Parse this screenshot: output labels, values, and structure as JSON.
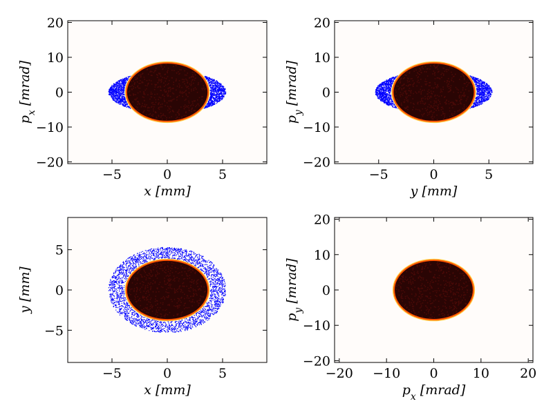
{
  "figure": {
    "background_color": "#ffffff",
    "panel_background_color": "#fffcfa"
  },
  "chart_data": [
    {
      "type": "scatter",
      "xlabel": "x [mm]",
      "ylabel": "p_x [mrad]",
      "xlim": [
        -9,
        9
      ],
      "ylim": [
        -20.5,
        20.5
      ],
      "xticks": [
        -5,
        0,
        5
      ],
      "xtick_labels": [
        "−5",
        "0",
        "5"
      ],
      "yticks": [
        -20,
        -10,
        0,
        10,
        20
      ],
      "ytick_labels": [
        "−20",
        "−10",
        "0",
        "10",
        "20"
      ],
      "grid": false,
      "series": [
        {
          "role": "halo",
          "shape": "crescent-pair",
          "color": "#0000ff",
          "outer_ellipse": {
            "cx": 0,
            "cy": 0,
            "rx": 5.3,
            "ry": 6.0
          },
          "inner_ellipse": {
            "cx": 0,
            "cy": 0,
            "rx": 3.9,
            "ry": 8.5
          }
        },
        {
          "role": "core",
          "shape": "ellipse-density",
          "fill_color": "#2a0504",
          "edge_color": "#ff5500",
          "ellipse": {
            "cx": 0,
            "cy": 0,
            "rx": 3.7,
            "ry": 8.4
          }
        }
      ]
    },
    {
      "type": "scatter",
      "xlabel": "y [mm]",
      "ylabel": "p_y [mrad]",
      "xlim": [
        -9,
        9
      ],
      "ylim": [
        -20.5,
        20.5
      ],
      "xticks": [
        -5,
        0,
        5
      ],
      "xtick_labels": [
        "−5",
        "0",
        "5"
      ],
      "yticks": [
        -20,
        -10,
        0,
        10,
        20
      ],
      "ytick_labels": [
        "−20",
        "−10",
        "0",
        "10",
        "20"
      ],
      "grid": false,
      "series": [
        {
          "role": "halo",
          "shape": "crescent-pair",
          "color": "#0000ff",
          "outer_ellipse": {
            "cx": 0,
            "cy": 0,
            "rx": 5.3,
            "ry": 6.0
          },
          "inner_ellipse": {
            "cx": 0,
            "cy": 0,
            "rx": 3.9,
            "ry": 8.5
          }
        },
        {
          "role": "core",
          "shape": "ellipse-density",
          "fill_color": "#2a0504",
          "edge_color": "#ff5500",
          "ellipse": {
            "cx": 0,
            "cy": 0,
            "rx": 3.7,
            "ry": 8.4
          }
        }
      ]
    },
    {
      "type": "scatter",
      "xlabel": "x [mm]",
      "ylabel": "y [mm]",
      "xlim": [
        -9,
        9
      ],
      "ylim": [
        -9,
        9
      ],
      "xticks": [
        -5,
        0,
        5
      ],
      "xtick_labels": [
        "−5",
        "0",
        "5"
      ],
      "yticks": [
        -5,
        0,
        5
      ],
      "ytick_labels": [
        "−5",
        "0",
        "5"
      ],
      "grid": false,
      "series": [
        {
          "role": "halo",
          "shape": "ring",
          "color": "#0000ff",
          "outer_ellipse": {
            "cx": 0,
            "cy": 0,
            "rx": 5.3,
            "ry": 5.3
          },
          "inner_ellipse": {
            "cx": 0,
            "cy": 0,
            "rx": 3.9,
            "ry": 3.9
          }
        },
        {
          "role": "core",
          "shape": "ellipse-density",
          "fill_color": "#2a0504",
          "edge_color": "#ff5500",
          "ellipse": {
            "cx": 0,
            "cy": 0,
            "rx": 3.7,
            "ry": 3.7
          }
        }
      ]
    },
    {
      "type": "scatter",
      "xlabel": "p_x [mrad]",
      "ylabel": "p_y [mrad]",
      "xlim": [
        -21,
        21
      ],
      "ylim": [
        -20.5,
        20.5
      ],
      "xticks": [
        -20,
        -10,
        0,
        10,
        20
      ],
      "xtick_labels": [
        "−20",
        "−10",
        "0",
        "10",
        "20"
      ],
      "yticks": [
        -20,
        -10,
        0,
        10,
        20
      ],
      "ytick_labels": [
        "−20",
        "−10",
        "0",
        "10",
        "20"
      ],
      "grid": false,
      "series": [
        {
          "role": "core",
          "shape": "ellipse-density",
          "fill_color": "#2a0504",
          "edge_color": "#ff5500",
          "ellipse": {
            "cx": 0,
            "cy": 0,
            "rx": 8.4,
            "ry": 8.4
          }
        }
      ]
    }
  ]
}
